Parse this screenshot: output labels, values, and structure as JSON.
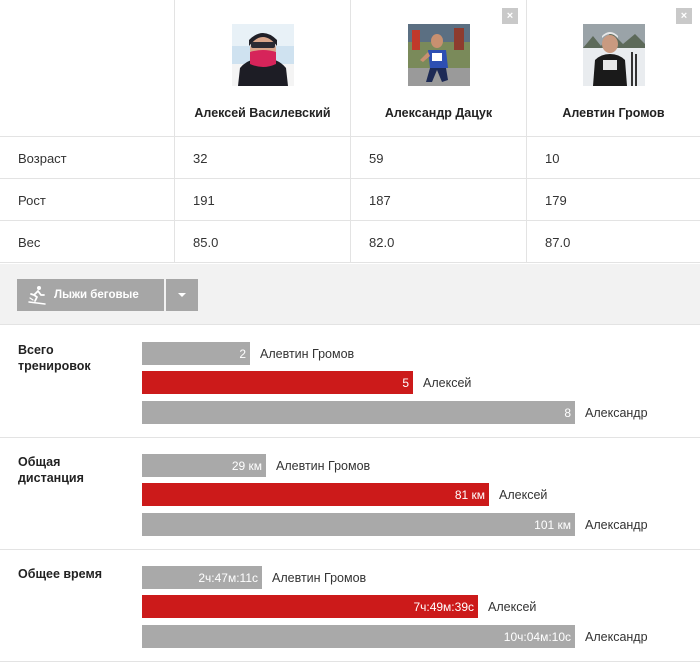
{
  "athletes": [
    {
      "name": "Алексей Василевский"
    },
    {
      "name": "Александр Дацук"
    },
    {
      "name": "Алевтин Громов"
    }
  ],
  "remove_icon": "×",
  "stats": [
    {
      "label": "Возраст",
      "values": [
        "32",
        "59",
        "10"
      ]
    },
    {
      "label": "Рост",
      "values": [
        "191",
        "187",
        "179"
      ]
    },
    {
      "label": "Вес",
      "values": [
        "85.0",
        "82.0",
        "87.0"
      ]
    }
  ],
  "sport": {
    "label": "Лыжи беговые",
    "icon": "skier-icon"
  },
  "comparisons": [
    {
      "title": "Всего тренировок",
      "bars": [
        {
          "value": "2",
          "name": "Алевтин Громов",
          "fraction": 0.25,
          "highlight": false
        },
        {
          "value": "5",
          "name": "Алексей",
          "fraction": 0.625,
          "highlight": true
        },
        {
          "value": "8",
          "name": "Александр",
          "fraction": 1.0,
          "highlight": false
        }
      ]
    },
    {
      "title": "Общая дистанция",
      "bars": [
        {
          "value": "29 км",
          "name": "Алевтин Громов",
          "fraction": 0.287,
          "highlight": false
        },
        {
          "value": "81 км",
          "name": "Алексей",
          "fraction": 0.802,
          "highlight": true
        },
        {
          "value": "101 км",
          "name": "Александр",
          "fraction": 1.0,
          "highlight": false
        }
      ]
    },
    {
      "title": "Общее время",
      "bars": [
        {
          "value": "2ч:47м:11с",
          "name": "Алевтин Громов",
          "fraction": 0.277,
          "highlight": false
        },
        {
          "value": "7ч:49м:39с",
          "name": "Алексей",
          "fraction": 0.776,
          "highlight": true
        },
        {
          "value": "10ч:04м:10с",
          "name": "Александр",
          "fraction": 1.0,
          "highlight": false
        }
      ]
    }
  ],
  "colors": {
    "highlight": "#cc1a1a",
    "neutral": "#a9a9a9"
  }
}
